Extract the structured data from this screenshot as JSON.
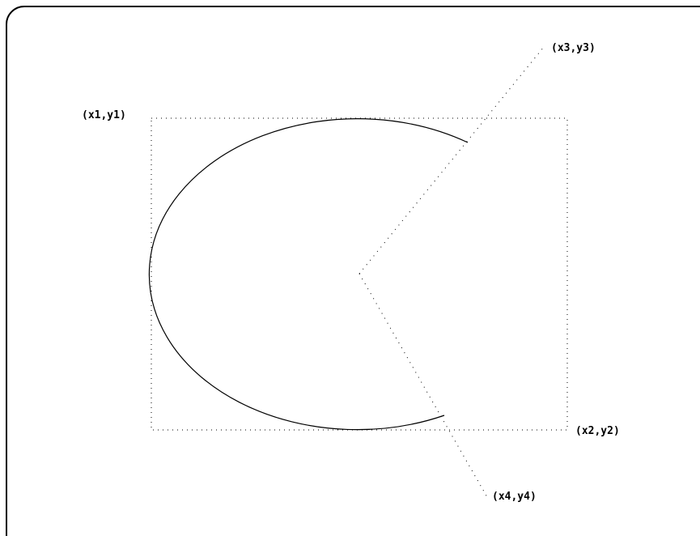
{
  "diagram": {
    "labels": {
      "p1": "(x1,y1)",
      "p2": "(x2,y2)",
      "p3": "(x3,y3)",
      "p4": "(x4,y4)"
    },
    "colors": {
      "stroke": "#000000",
      "background": "#ffffff"
    }
  }
}
